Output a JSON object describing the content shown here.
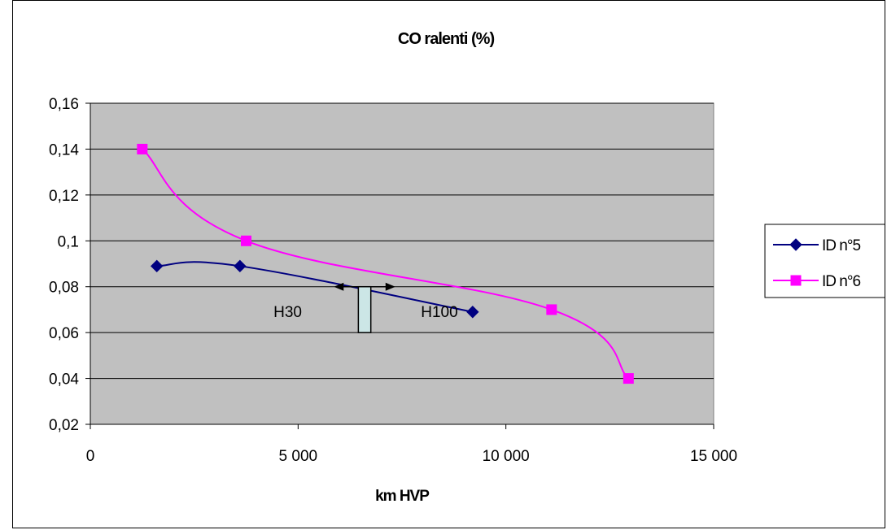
{
  "chart_data": {
    "type": "line",
    "title": "CO ralenti (%)",
    "xlabel": "km HVP",
    "ylabel": "",
    "xlim": [
      0,
      15000
    ],
    "ylim": [
      0.02,
      0.16
    ],
    "x_ticks": [
      0,
      5000,
      10000,
      15000
    ],
    "x_tick_labels": [
      "0",
      "5 000",
      "10 000",
      "15 000"
    ],
    "y_ticks": [
      0.02,
      0.04,
      0.06,
      0.08,
      0.1,
      0.12,
      0.14,
      0.16
    ],
    "y_tick_labels": [
      "0,02",
      "0,04",
      "0,06",
      "0,08",
      "0,1",
      "0,12",
      "0,14",
      "0,16"
    ],
    "grid": "horizontal",
    "plot_background": "#c0c0c0",
    "legend_position": "right",
    "series": [
      {
        "name": "ID n°5",
        "color": "#000080",
        "marker": "diamond",
        "points": [
          [
            1600,
            0.089
          ],
          [
            3600,
            0.089
          ],
          [
            9200,
            0.069
          ]
        ]
      },
      {
        "name": "ID n°6",
        "color": "#ff00ff",
        "marker": "square",
        "points": [
          [
            1250,
            0.14
          ],
          [
            3750,
            0.1
          ],
          [
            11100,
            0.07
          ],
          [
            12950,
            0.04
          ]
        ]
      }
    ],
    "annotations": [
      {
        "text": "H30"
      },
      {
        "text": "H100"
      }
    ],
    "annotation_range": {
      "x": [
        5900,
        7300
      ],
      "y": 0.08,
      "box_x": [
        6450,
        6750
      ],
      "box_y": [
        0.06,
        0.08
      ]
    }
  }
}
